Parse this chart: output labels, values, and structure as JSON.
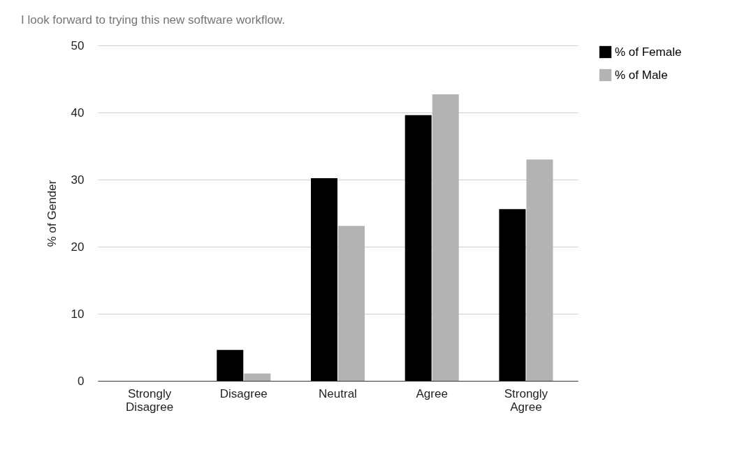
{
  "chart_data": {
    "type": "bar",
    "title": "I look forward to trying this new software workflow.",
    "ylabel": "% of Gender",
    "categories": [
      "Strongly Disagree",
      "Disagree",
      "Neutral",
      "Agree",
      "Strongly Agree"
    ],
    "series": [
      {
        "name": "% of Female",
        "color": "#000000",
        "values": [
          0,
          4.6,
          30.2,
          39.6,
          25.6
        ]
      },
      {
        "name": "% of Male",
        "color": "#b3b3b3",
        "values": [
          0,
          1.1,
          23.1,
          42.7,
          33.0
        ]
      }
    ],
    "ylim": [
      0,
      50
    ],
    "yticks": [
      0,
      10,
      20,
      30,
      40,
      50
    ],
    "grid": "y",
    "legend": "top right"
  }
}
